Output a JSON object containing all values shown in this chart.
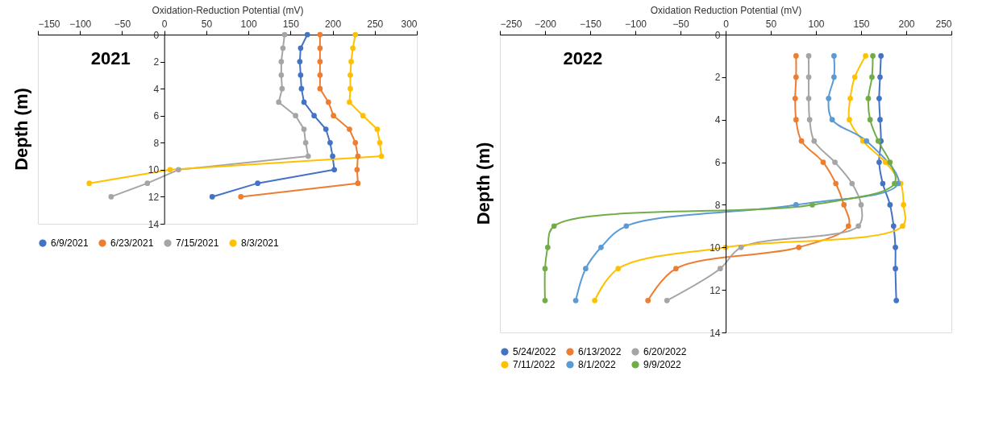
{
  "chart_data": [
    {
      "type": "line",
      "xlabel": "Oxidation-Reduction Potential (mV)",
      "ylabel": "Depth (m)",
      "annotations": [
        "2021"
      ],
      "xlim": [
        -150,
        300
      ],
      "xticks": [
        -150,
        -100,
        -50,
        0,
        50,
        100,
        150,
        200,
        250,
        300
      ],
      "ylim": [
        14,
        0
      ],
      "yticks": [
        0,
        2,
        4,
        6,
        8,
        10,
        12,
        14
      ],
      "grid": false,
      "legend": "bottom",
      "marker": "circle",
      "line_style": "solid",
      "series": [
        {
          "name": "6/9/2021",
          "color": "#4472c4",
          "x": [
            170,
            162,
            161,
            162,
            163,
            166,
            178,
            192,
            197,
            200,
            202,
            111,
            57
          ],
          "values": [
            0,
            1,
            2,
            3,
            4,
            5,
            6,
            7,
            8,
            9,
            10,
            11,
            12
          ]
        },
        {
          "name": "6/23/2021",
          "color": "#ed7d31",
          "x": [
            185,
            185,
            185,
            185,
            185,
            195,
            201,
            220,
            227,
            230,
            229,
            230,
            91
          ],
          "values": [
            0,
            1,
            2,
            3,
            4,
            5,
            6,
            7,
            8,
            9,
            10,
            11,
            12
          ]
        },
        {
          "name": "7/15/2021",
          "color": "#a5a5a5",
          "x": [
            143,
            141,
            139,
            139,
            140,
            136,
            156,
            166,
            168,
            171,
            17,
            -20,
            -63
          ],
          "values": [
            0,
            1,
            2,
            3,
            4,
            5,
            6,
            7,
            8,
            9,
            10,
            11,
            12
          ]
        },
        {
          "name": "8/3/2021",
          "color": "#ffc000",
          "x": [
            227,
            224,
            222,
            221,
            221,
            220,
            236,
            253,
            256,
            258,
            7,
            -89
          ],
          "values": [
            0,
            1,
            2,
            3,
            4,
            5,
            6,
            7,
            8,
            9,
            10,
            11
          ]
        }
      ]
    },
    {
      "type": "line",
      "xlabel": "Oxidation Reduction Potential (mV)",
      "ylabel": "Depth (m)",
      "annotations": [
        "2022"
      ],
      "xlim": [
        -250,
        250
      ],
      "xticks": [
        -250,
        -200,
        -150,
        -100,
        -50,
        0,
        50,
        100,
        150,
        200,
        250
      ],
      "ylim": [
        14,
        0
      ],
      "yticks": [
        0,
        2,
        4,
        6,
        8,
        10,
        12,
        14
      ],
      "grid": false,
      "legend": "bottom",
      "marker": "circle",
      "line_style": "solid",
      "series": [
        {
          "name": "5/24/2022",
          "color": "#4472c4",
          "x": [
            172,
            171,
            170,
            171,
            172,
            170,
            174,
            182,
            186,
            188,
            188,
            189
          ],
          "values": [
            1,
            2,
            3,
            4,
            5,
            6,
            7,
            8,
            9,
            10,
            11,
            12.5
          ]
        },
        {
          "name": "6/13/2022",
          "color": "#ed7d31",
          "x": [
            78,
            78,
            77,
            78,
            84,
            108,
            122,
            131,
            136,
            81,
            -55,
            -86
          ],
          "values": [
            1,
            2,
            3,
            4,
            5,
            6,
            7,
            8,
            9,
            10,
            11,
            12.5
          ]
        },
        {
          "name": "6/20/2022",
          "color": "#a5a5a5",
          "x": [
            92,
            92,
            92,
            93,
            98,
            121,
            140,
            150,
            147,
            17,
            -6,
            -65
          ],
          "values": [
            1,
            2,
            3,
            4,
            5,
            6,
            7,
            8,
            9,
            10,
            11,
            12.5
          ]
        },
        {
          "name": "7/11/2022",
          "color": "#ffc000",
          "x": [
            155,
            143,
            138,
            137,
            152,
            177,
            194,
            197,
            196,
            0,
            -119,
            -145
          ],
          "values": [
            1,
            2,
            3,
            4,
            5,
            6,
            7,
            8,
            9,
            10,
            11,
            12.5
          ]
        },
        {
          "name": "8/1/2022",
          "color": "#5b9bd5",
          "x": [
            120,
            120,
            114,
            118,
            156,
            null,
            191,
            78,
            -110,
            -138,
            -155,
            -166
          ],
          "values": [
            1,
            2,
            3,
            4,
            5,
            null,
            7,
            8,
            9,
            10,
            11,
            12.5
          ]
        },
        {
          "name": "9/9/2022",
          "color": "#70ad47",
          "x": [
            163,
            162,
            158,
            160,
            169,
            182,
            187,
            96,
            -190,
            -197,
            -200,
            -200
          ],
          "values": [
            1,
            2,
            3,
            4,
            5,
            6,
            7,
            8,
            9,
            10,
            11,
            12.5
          ]
        }
      ]
    }
  ]
}
